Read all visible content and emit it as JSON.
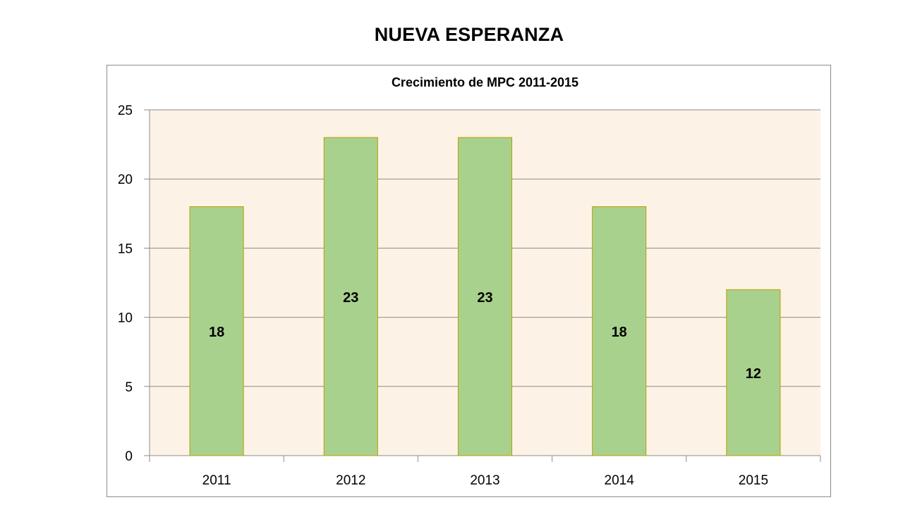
{
  "slide": {
    "title": "NUEVA ESPERANZA"
  },
  "chart_data": {
    "type": "bar",
    "title": "Crecimiento de MPC 2011-2015",
    "xlabel": "",
    "ylabel": "",
    "categories": [
      "2011",
      "2012",
      "2013",
      "2014",
      "2015"
    ],
    "values": [
      18,
      23,
      23,
      18,
      12
    ],
    "data_labels": [
      "18",
      "23",
      "23",
      "18",
      "12"
    ],
    "ylim": [
      0,
      25
    ],
    "yticks": [
      0,
      5,
      10,
      15,
      20,
      25
    ],
    "grid": true,
    "legend": "none",
    "colors": {
      "bar_fill": "#a9d18e",
      "bar_stroke": "#b8a000",
      "plot_background": "#fdf2e6",
      "gridline": "#8c8c8c",
      "text": "#000000"
    }
  }
}
